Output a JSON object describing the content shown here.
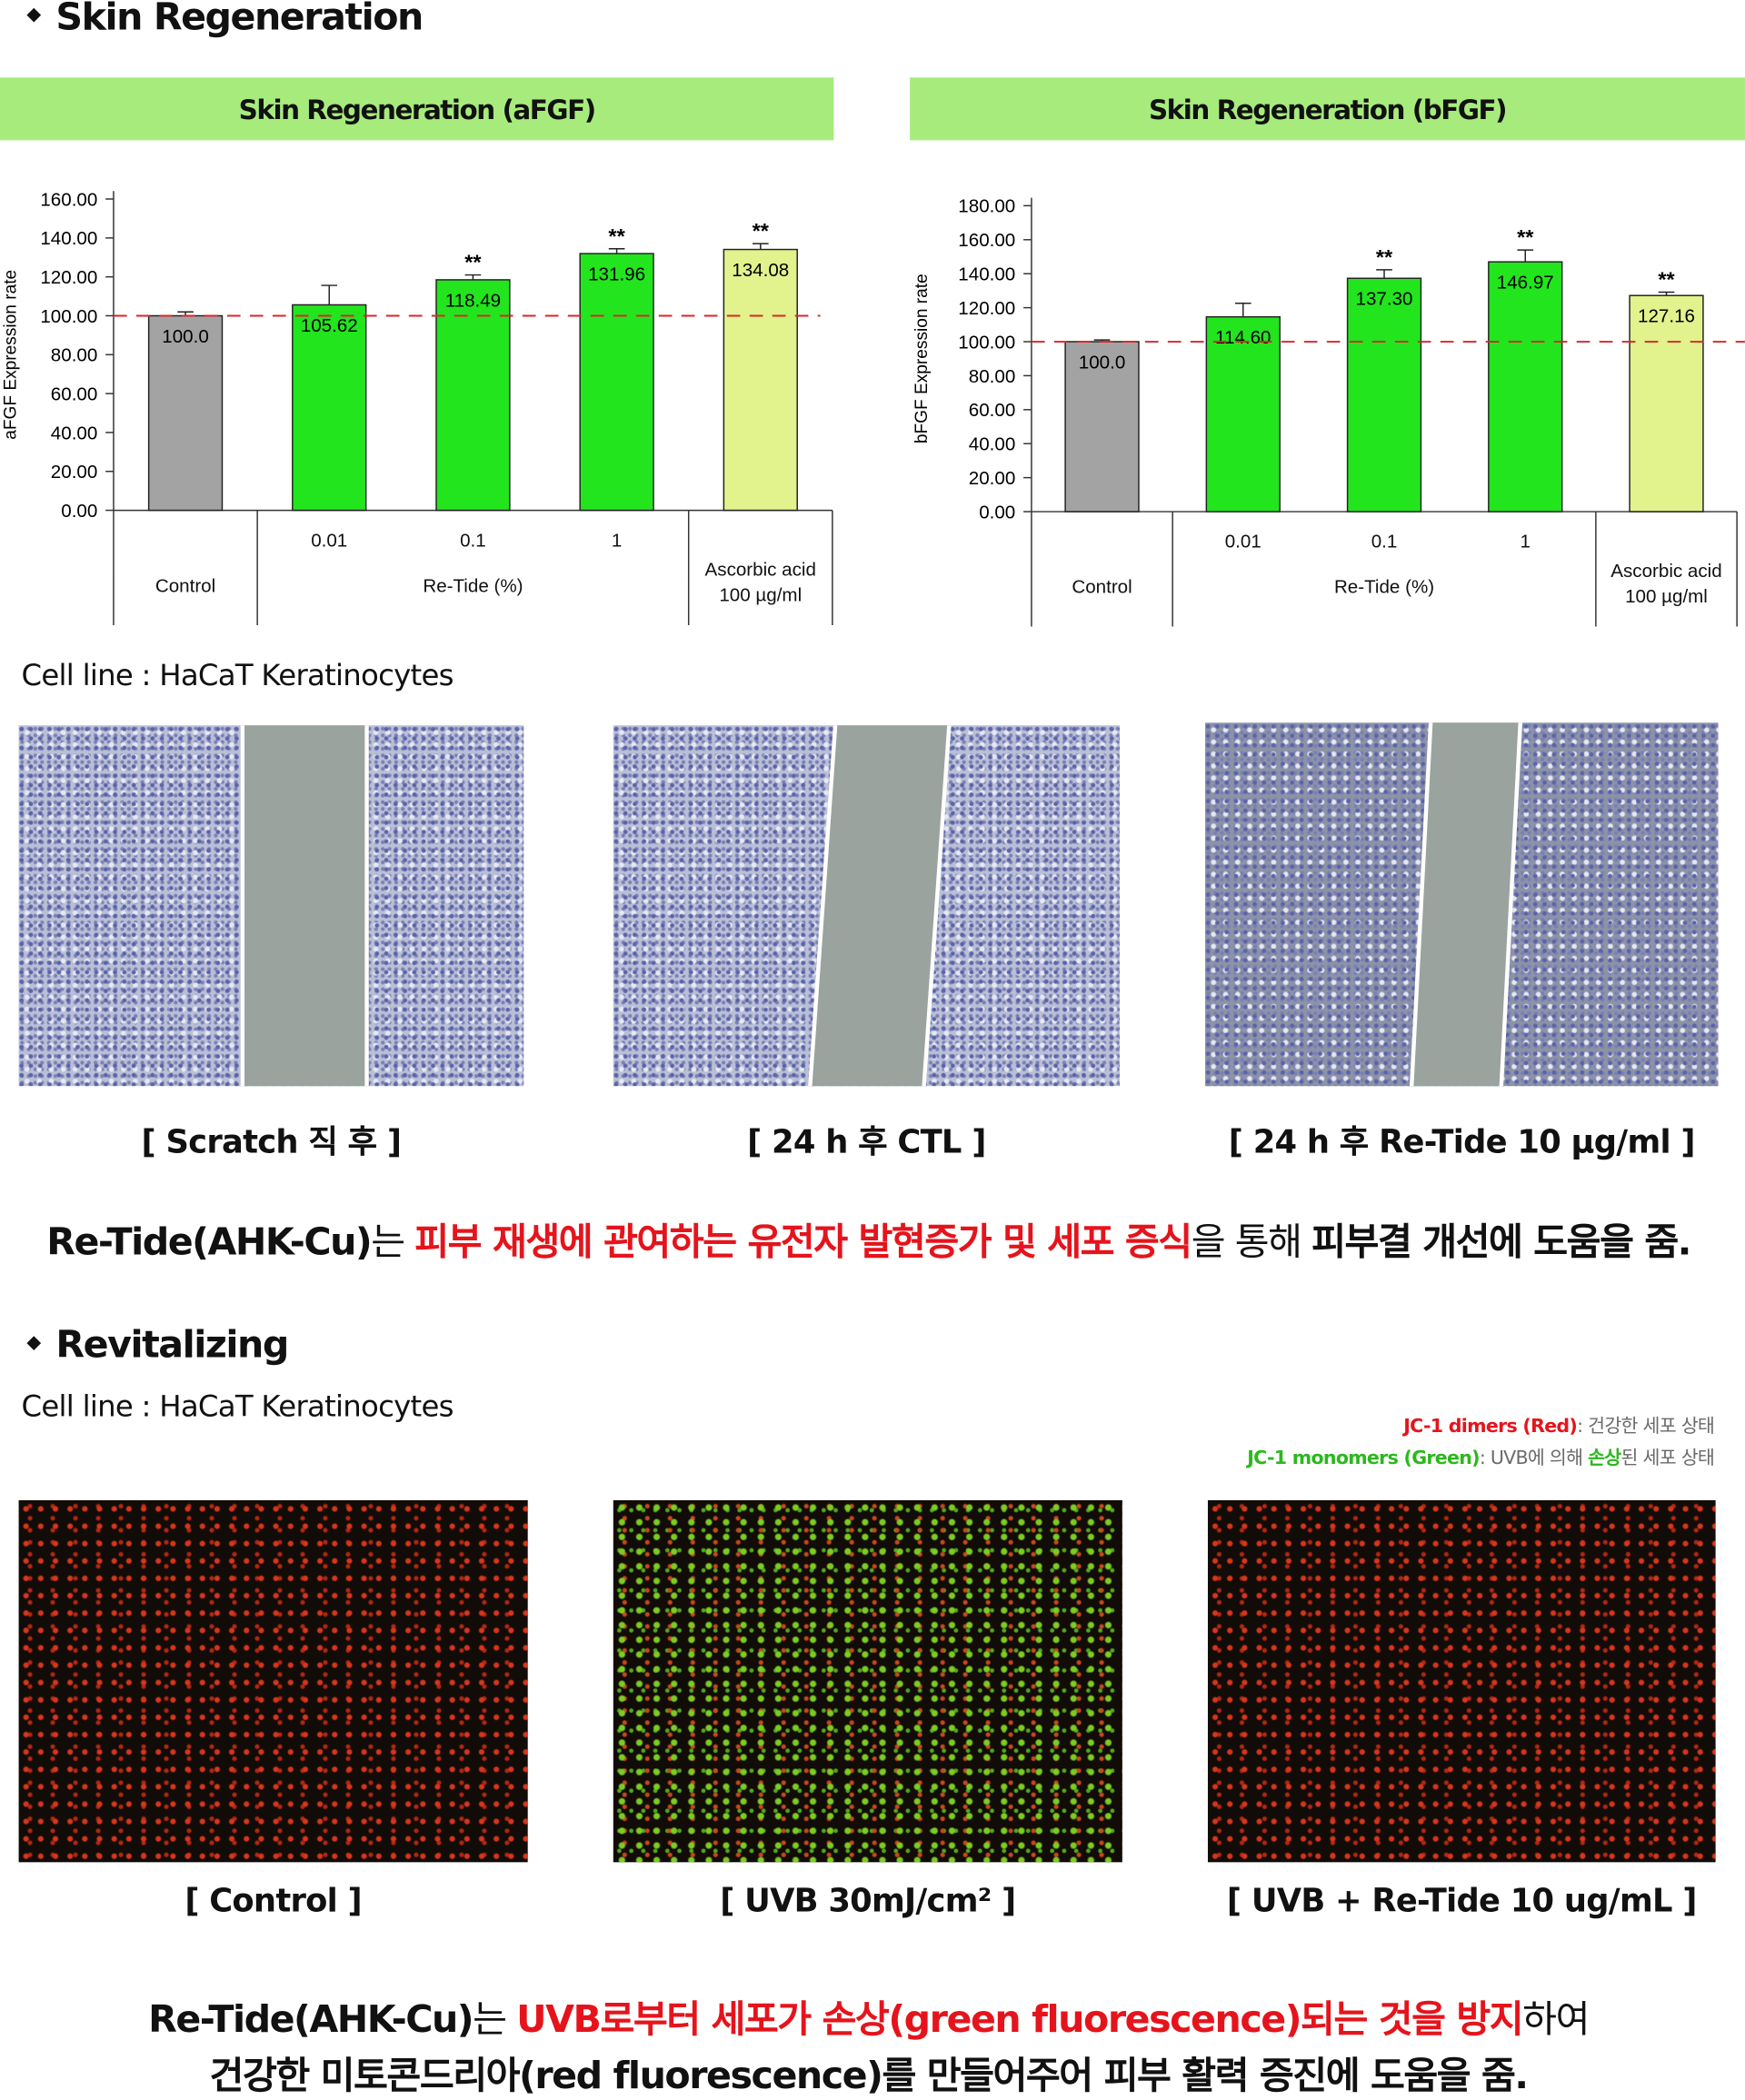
{
  "skin_section": {
    "heading": "Skin Regeneration",
    "cell_line": "Cell line : HaCaT Keratinocytes",
    "captions": [
      "[ Scratch 직 후 ]",
      "[ 24 h 후 CTL ]",
      "[ 24 h 후 Re-Tide 10 µg/ml ]"
    ],
    "summary": [
      "Re-Tide(AHK-Cu)",
      "는 ",
      "피부 재생에 관여하는 유전자 발현증가 및 세포 증식",
      "을 통해  ",
      "피부결 개선에 도움을 줌."
    ]
  },
  "chart_data": [
    {
      "type": "bar",
      "title": "Skin Regeneration (aFGF)",
      "ylabel": "aFGF Expression rate",
      "categories": [
        "Control",
        "0.01",
        "0.1",
        "1",
        "Ascorbic acid 100 µg/ml"
      ],
      "group_label": "Re-Tide (%)",
      "values": [
        100,
        105.62,
        118.49,
        131.96,
        134.08
      ],
      "value_labels": [
        "100.0",
        "105.62",
        "118.49",
        "131.96",
        "134.08"
      ],
      "errors": [
        2,
        10,
        2.5,
        2.5,
        3
      ],
      "annotations": [
        null,
        null,
        "**",
        "**",
        "**"
      ],
      "colors": [
        "#a3a3a3",
        "#22e51e",
        "#22e51e",
        "#22e51e",
        "#e2f28c"
      ],
      "reference_line": 100,
      "ylim": [
        0,
        160
      ],
      "yticks": [
        {
          "value": 0,
          "label": "0.00"
        },
        {
          "value": 20,
          "label": "20.00"
        },
        {
          "value": 40,
          "label": "40.00"
        },
        {
          "value": 60,
          "label": "60.00"
        },
        {
          "value": 80,
          "label": "80.00"
        },
        {
          "value": 100,
          "label": "100.00"
        },
        {
          "value": 120,
          "label": "120.00"
        },
        {
          "value": 140,
          "label": "140.00"
        },
        {
          "value": 160,
          "label": "160.00"
        }
      ]
    },
    {
      "type": "bar",
      "title": "Skin Regeneration (bFGF)",
      "ylabel": "bFGF Expression rate",
      "categories": [
        "Control",
        "0.01",
        "0.1",
        "1",
        "Ascorbic acid 100 µg/ml"
      ],
      "group_label": "Re-Tide (%)",
      "values": [
        100,
        114.6,
        137.3,
        146.97,
        127.16
      ],
      "value_labels": [
        "100.0",
        "114.60",
        "137.30",
        "146.97",
        "127.16"
      ],
      "errors": [
        1,
        8,
        5,
        7,
        2
      ],
      "annotations": [
        null,
        null,
        "**",
        "**",
        "**"
      ],
      "colors": [
        "#a3a3a3",
        "#22e51e",
        "#22e51e",
        "#22e51e",
        "#e2f28c"
      ],
      "reference_line": 100,
      "ylim": [
        0,
        180
      ],
      "yticks": [
        {
          "value": 0,
          "label": "0.00"
        },
        {
          "value": 20,
          "label": "20.00"
        },
        {
          "value": 40,
          "label": "40.00"
        },
        {
          "value": 60,
          "label": "60.00"
        },
        {
          "value": 80,
          "label": "80.00"
        },
        {
          "value": 100,
          "label": "100.00"
        },
        {
          "value": 120,
          "label": "120.00"
        },
        {
          "value": 140,
          "label": "140.00"
        },
        {
          "value": 160,
          "label": "160.00"
        },
        {
          "value": 180,
          "label": "180.00"
        }
      ]
    }
  ],
  "revitalizing_section": {
    "heading": "Revitalizing",
    "cell_line": "Cell line : HaCaT Keratinocytes",
    "legend": [
      [
        "JC-1 dimers (Red)",
        ": 건강한 세포 상태"
      ],
      [
        "JC-1 monomers (Green)",
        ": UVB에 의해 ",
        "손상",
        "된 세포 상태"
      ]
    ],
    "captions": [
      "[ Control ]",
      "[ UVB 30mJ/cm² ]",
      "[ UVB + Re-Tide 10 ug/mL ]"
    ],
    "summary": [
      [
        "Re-Tide(AHK-Cu)",
        "는 ",
        "UVB로부터 세포가 손상(green fluorescence)되는 것을 방지",
        "하여"
      ],
      [
        "건강한 미토콘드리아(red fluorescence)를 만들어주어 피부 활력 증진에 도움을 줌."
      ]
    ]
  }
}
